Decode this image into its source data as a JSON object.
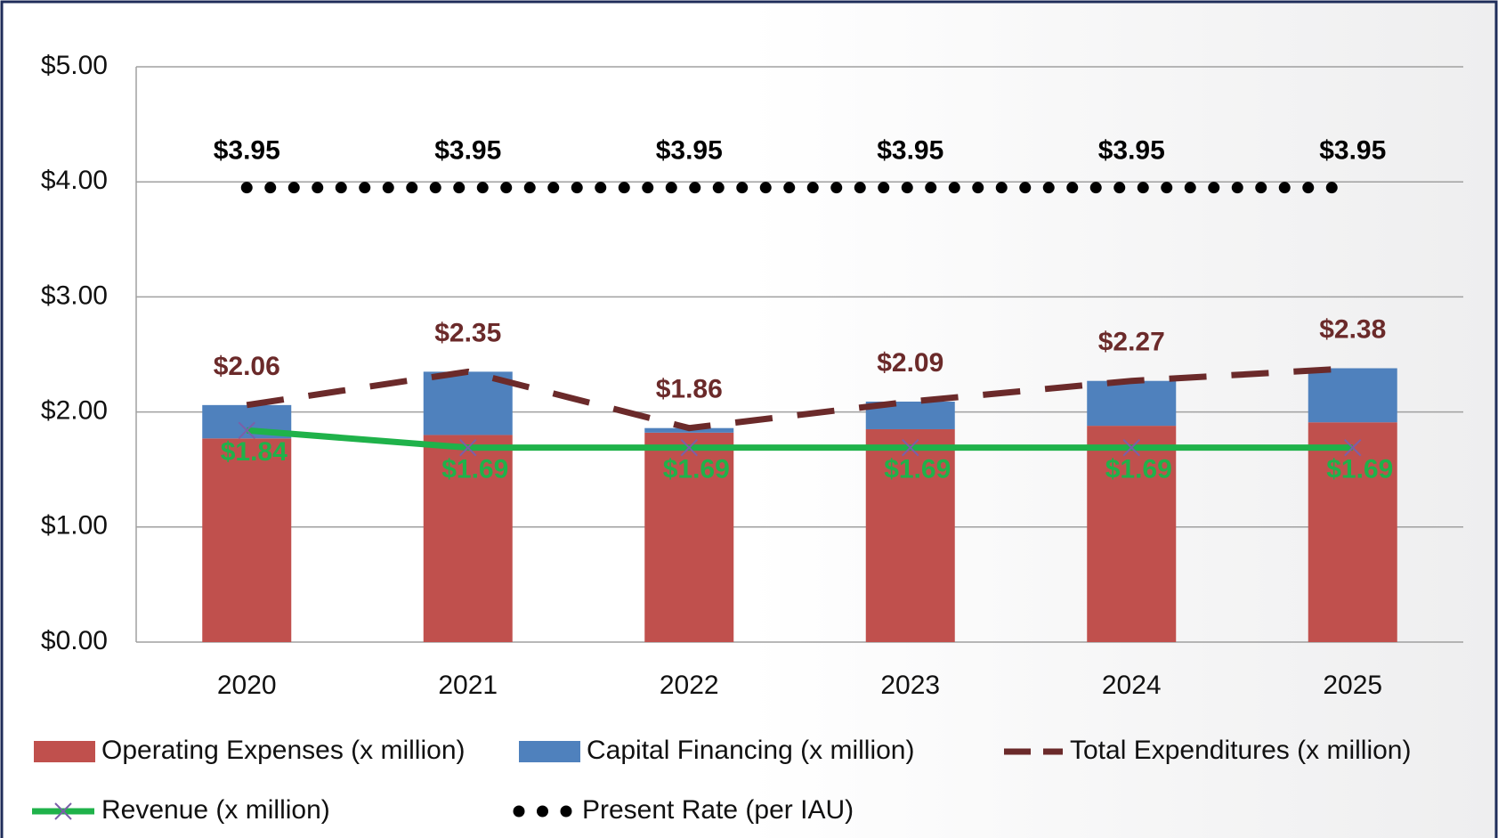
{
  "chart_data": {
    "type": "bar",
    "categories": [
      "2020",
      "2021",
      "2022",
      "2023",
      "2024",
      "2025"
    ],
    "series": [
      {
        "name": "Operating Expenses (x million)",
        "type": "bar",
        "color": "#c0504d",
        "values": [
          1.77,
          1.8,
          1.82,
          1.85,
          1.88,
          1.91
        ]
      },
      {
        "name": "Capital Financing (x million)",
        "type": "bar",
        "color": "#4f81bd",
        "values": [
          0.29,
          0.55,
          0.04,
          0.24,
          0.39,
          0.47
        ]
      },
      {
        "name": "Total Expenditures (x million)",
        "type": "line",
        "style": "dashed",
        "color": "#6b2a2a",
        "values": [
          2.06,
          2.35,
          1.86,
          2.09,
          2.27,
          2.38
        ],
        "value_labels": [
          "$2.06",
          "$2.35",
          "$1.86",
          "$2.09",
          "$2.27",
          "$2.38"
        ]
      },
      {
        "name": "Revenue (x million)",
        "type": "line",
        "style": "solid",
        "marker": "x",
        "color": "#1fb24a",
        "values": [
          1.84,
          1.69,
          1.69,
          1.69,
          1.69,
          1.69
        ],
        "value_labels": [
          "$1.84",
          "$1.69",
          "$1.69",
          "$1.69",
          "$1.69",
          "$1.69"
        ]
      },
      {
        "name": "Present Rate (per IAU)",
        "type": "line",
        "style": "dotted",
        "color": "#000000",
        "values": [
          3.95,
          3.95,
          3.95,
          3.95,
          3.95,
          3.95
        ],
        "value_labels": [
          "$3.95",
          "$3.95",
          "$3.95",
          "$3.95",
          "$3.95",
          "$3.95"
        ]
      }
    ],
    "ylim": [
      0,
      5
    ],
    "yticks": [
      {
        "value": 0,
        "label": "$0.00"
      },
      {
        "value": 1,
        "label": "$1.00"
      },
      {
        "value": 2,
        "label": "$2.00"
      },
      {
        "value": 3,
        "label": "$3.00"
      },
      {
        "value": 4,
        "label": "$4.00"
      },
      {
        "value": 5,
        "label": "$5.00"
      }
    ],
    "grid": true,
    "legend": "bottom"
  }
}
